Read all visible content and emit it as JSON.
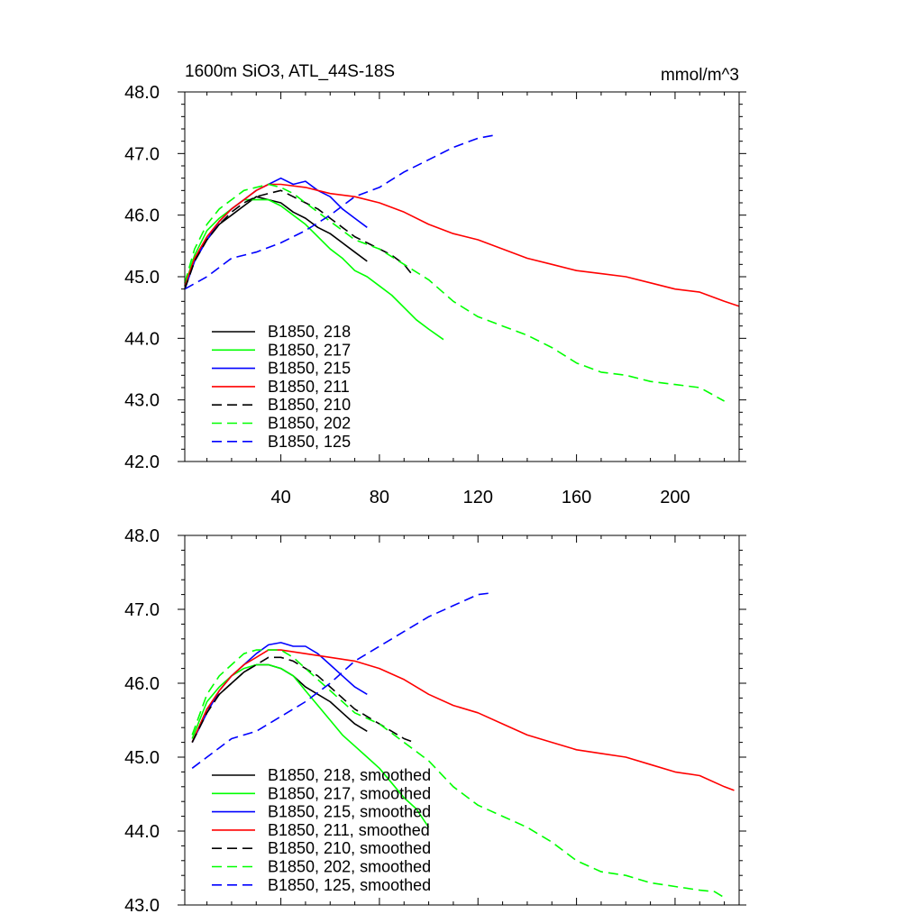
{
  "chart_data": [
    {
      "type": "line",
      "title": "1600m SiO3, ATL_44S-18S",
      "units": "mmol/m^3",
      "xlim": [
        1,
        226
      ],
      "ylim": [
        42.0,
        48.0
      ],
      "x_ticks": [
        40,
        80,
        120,
        160,
        200
      ],
      "y_ticks": [
        "42.0",
        "43.0",
        "44.0",
        "45.0",
        "46.0",
        "47.0",
        "48.0"
      ],
      "legend_position": "bottom-left",
      "series": [
        {
          "name": "B1850, 218",
          "color": "#000000",
          "dash": "solid",
          "x": [
            1,
            5,
            10,
            15,
            20,
            25,
            30,
            35,
            40,
            45,
            50,
            55,
            60,
            65,
            70,
            75
          ],
          "y": [
            44.8,
            45.3,
            45.6,
            45.85,
            46.0,
            46.15,
            46.3,
            46.25,
            46.2,
            46.05,
            45.95,
            45.8,
            45.7,
            45.55,
            45.4,
            45.25
          ]
        },
        {
          "name": "B1850, 217",
          "color": "#00ff00",
          "dash": "solid",
          "x": [
            1,
            5,
            10,
            15,
            20,
            25,
            30,
            35,
            40,
            45,
            50,
            55,
            60,
            65,
            70,
            75,
            80,
            85,
            90,
            95,
            100,
            106
          ],
          "y": [
            44.85,
            45.35,
            45.75,
            45.95,
            46.1,
            46.25,
            46.25,
            46.25,
            46.15,
            46.0,
            45.85,
            45.65,
            45.45,
            45.3,
            45.1,
            45.0,
            44.85,
            44.7,
            44.5,
            44.3,
            44.15,
            43.98
          ]
        },
        {
          "name": "B1850, 215",
          "color": "#0000ff",
          "dash": "solid",
          "x": [
            1,
            5,
            10,
            15,
            20,
            25,
            30,
            35,
            40,
            45,
            50,
            55,
            60,
            65,
            70,
            75
          ],
          "y": [
            44.8,
            45.25,
            45.6,
            45.9,
            46.1,
            46.25,
            46.4,
            46.5,
            46.6,
            46.5,
            46.55,
            46.4,
            46.3,
            46.1,
            45.95,
            45.8
          ]
        },
        {
          "name": "B1850, 211",
          "color": "#ff0000",
          "dash": "solid",
          "x": [
            1,
            5,
            10,
            15,
            20,
            25,
            30,
            35,
            40,
            50,
            60,
            70,
            80,
            90,
            100,
            110,
            120,
            130,
            140,
            150,
            160,
            170,
            180,
            190,
            200,
            210,
            220,
            226
          ],
          "y": [
            44.85,
            45.3,
            45.65,
            45.9,
            46.1,
            46.25,
            46.4,
            46.5,
            46.5,
            46.45,
            46.35,
            46.3,
            46.2,
            46.05,
            45.85,
            45.7,
            45.6,
            45.45,
            45.3,
            45.2,
            45.1,
            45.05,
            45.0,
            44.9,
            44.8,
            44.75,
            44.6,
            44.52
          ]
        },
        {
          "name": "B1850, 210",
          "color": "#000000",
          "dash": "dashed",
          "x": [
            1,
            5,
            10,
            15,
            20,
            25,
            30,
            35,
            40,
            45,
            50,
            55,
            60,
            65,
            70,
            75,
            80,
            85,
            90,
            94
          ],
          "y": [
            44.8,
            45.25,
            45.6,
            45.85,
            46.05,
            46.2,
            46.3,
            46.35,
            46.4,
            46.3,
            46.2,
            46.1,
            45.95,
            45.8,
            45.65,
            45.55,
            45.45,
            45.35,
            45.2,
            45.0
          ]
        },
        {
          "name": "B1850, 202",
          "color": "#00ff00",
          "dash": "dashed",
          "x": [
            1,
            5,
            10,
            15,
            20,
            25,
            30,
            35,
            40,
            45,
            50,
            60,
            70,
            80,
            90,
            100,
            110,
            120,
            130,
            140,
            150,
            160,
            170,
            180,
            190,
            200,
            210,
            220
          ],
          "y": [
            44.9,
            45.45,
            45.85,
            46.1,
            46.25,
            46.4,
            46.45,
            46.5,
            46.45,
            46.35,
            46.2,
            45.9,
            45.6,
            45.45,
            45.2,
            44.95,
            44.6,
            44.35,
            44.2,
            44.05,
            43.85,
            43.6,
            43.45,
            43.4,
            43.3,
            43.25,
            43.2,
            42.98
          ]
        },
        {
          "name": "B1850, 125",
          "color": "#0000ff",
          "dash": "dashed",
          "x": [
            1,
            10,
            20,
            30,
            40,
            50,
            60,
            70,
            80,
            90,
            100,
            110,
            120,
            127
          ],
          "y": [
            44.8,
            45.0,
            45.3,
            45.4,
            45.55,
            45.75,
            46.0,
            46.3,
            46.45,
            46.7,
            46.9,
            47.1,
            47.25,
            47.3
          ]
        }
      ]
    },
    {
      "type": "line",
      "title": "",
      "xlim": [
        1,
        226
      ],
      "ylim": [
        43.0,
        48.0
      ],
      "x_ticks": [],
      "y_ticks": [
        "43.0",
        "44.0",
        "45.0",
        "46.0",
        "47.0",
        "48.0"
      ],
      "legend_position": "bottom-left",
      "series": [
        {
          "name": "B1850, 218, smoothed",
          "color": "#000000",
          "dash": "solid",
          "x": [
            4,
            10,
            15,
            20,
            25,
            30,
            35,
            40,
            45,
            50,
            55,
            60,
            65,
            70,
            75
          ],
          "y": [
            45.2,
            45.65,
            45.85,
            46.0,
            46.15,
            46.25,
            46.25,
            46.2,
            46.1,
            45.95,
            45.85,
            45.75,
            45.6,
            45.45,
            45.35
          ]
        },
        {
          "name": "B1850, 217, smoothed",
          "color": "#00ff00",
          "dash": "solid",
          "x": [
            4,
            10,
            15,
            20,
            25,
            30,
            35,
            40,
            45,
            50,
            55,
            60,
            65,
            70,
            75,
            80,
            85,
            90,
            95,
            100
          ],
          "y": [
            45.25,
            45.75,
            45.95,
            46.1,
            46.2,
            46.25,
            46.25,
            46.2,
            46.1,
            45.9,
            45.7,
            45.5,
            45.3,
            45.15,
            45.0,
            44.85,
            44.65,
            44.45,
            44.3,
            44.05
          ]
        },
        {
          "name": "B1850, 215, smoothed",
          "color": "#0000ff",
          "dash": "solid",
          "x": [
            4,
            10,
            15,
            20,
            25,
            30,
            35,
            40,
            45,
            50,
            55,
            60,
            65,
            70,
            75
          ],
          "y": [
            45.2,
            45.6,
            45.9,
            46.1,
            46.25,
            46.4,
            46.52,
            46.55,
            46.5,
            46.5,
            46.4,
            46.25,
            46.1,
            45.95,
            45.85
          ]
        },
        {
          "name": "B1850, 211, smoothed",
          "color": "#ff0000",
          "dash": "solid",
          "x": [
            4,
            10,
            15,
            20,
            25,
            30,
            35,
            40,
            50,
            60,
            70,
            80,
            90,
            100,
            110,
            120,
            130,
            140,
            150,
            160,
            170,
            180,
            190,
            200,
            210,
            220,
            224
          ],
          "y": [
            45.2,
            45.65,
            45.9,
            46.1,
            46.25,
            46.35,
            46.45,
            46.45,
            46.4,
            46.35,
            46.3,
            46.2,
            46.05,
            45.85,
            45.7,
            45.6,
            45.45,
            45.3,
            45.2,
            45.1,
            45.05,
            45.0,
            44.9,
            44.8,
            44.75,
            44.6,
            44.55
          ]
        },
        {
          "name": "B1850, 210, smoothed",
          "color": "#000000",
          "dash": "dashed",
          "x": [
            4,
            10,
            15,
            20,
            25,
            30,
            35,
            40,
            45,
            50,
            55,
            60,
            65,
            70,
            75,
            80,
            85,
            90,
            94
          ],
          "y": [
            45.2,
            45.6,
            45.85,
            46.0,
            46.15,
            46.25,
            46.35,
            46.35,
            46.3,
            46.2,
            46.1,
            45.95,
            45.8,
            45.65,
            45.55,
            45.45,
            45.35,
            45.25,
            45.2
          ]
        },
        {
          "name": "B1850, 202, smoothed",
          "color": "#00ff00",
          "dash": "dashed",
          "x": [
            4,
            10,
            15,
            20,
            25,
            30,
            35,
            40,
            45,
            50,
            60,
            70,
            80,
            90,
            100,
            110,
            120,
            130,
            140,
            150,
            160,
            170,
            180,
            190,
            200,
            210,
            216,
            220
          ],
          "y": [
            45.3,
            45.85,
            46.1,
            46.25,
            46.4,
            46.45,
            46.45,
            46.45,
            46.35,
            46.2,
            45.9,
            45.6,
            45.45,
            45.2,
            44.95,
            44.6,
            44.35,
            44.2,
            44.05,
            43.85,
            43.6,
            43.45,
            43.4,
            43.3,
            43.25,
            43.2,
            43.18,
            43.1
          ]
        },
        {
          "name": "B1850, 125, smoothed",
          "color": "#0000ff",
          "dash": "dashed",
          "x": [
            4,
            10,
            20,
            30,
            40,
            50,
            60,
            70,
            80,
            90,
            100,
            110,
            120,
            125
          ],
          "y": [
            44.85,
            45.0,
            45.25,
            45.35,
            45.55,
            45.75,
            46.0,
            46.3,
            46.5,
            46.7,
            46.9,
            47.05,
            47.2,
            47.22
          ]
        }
      ]
    }
  ]
}
